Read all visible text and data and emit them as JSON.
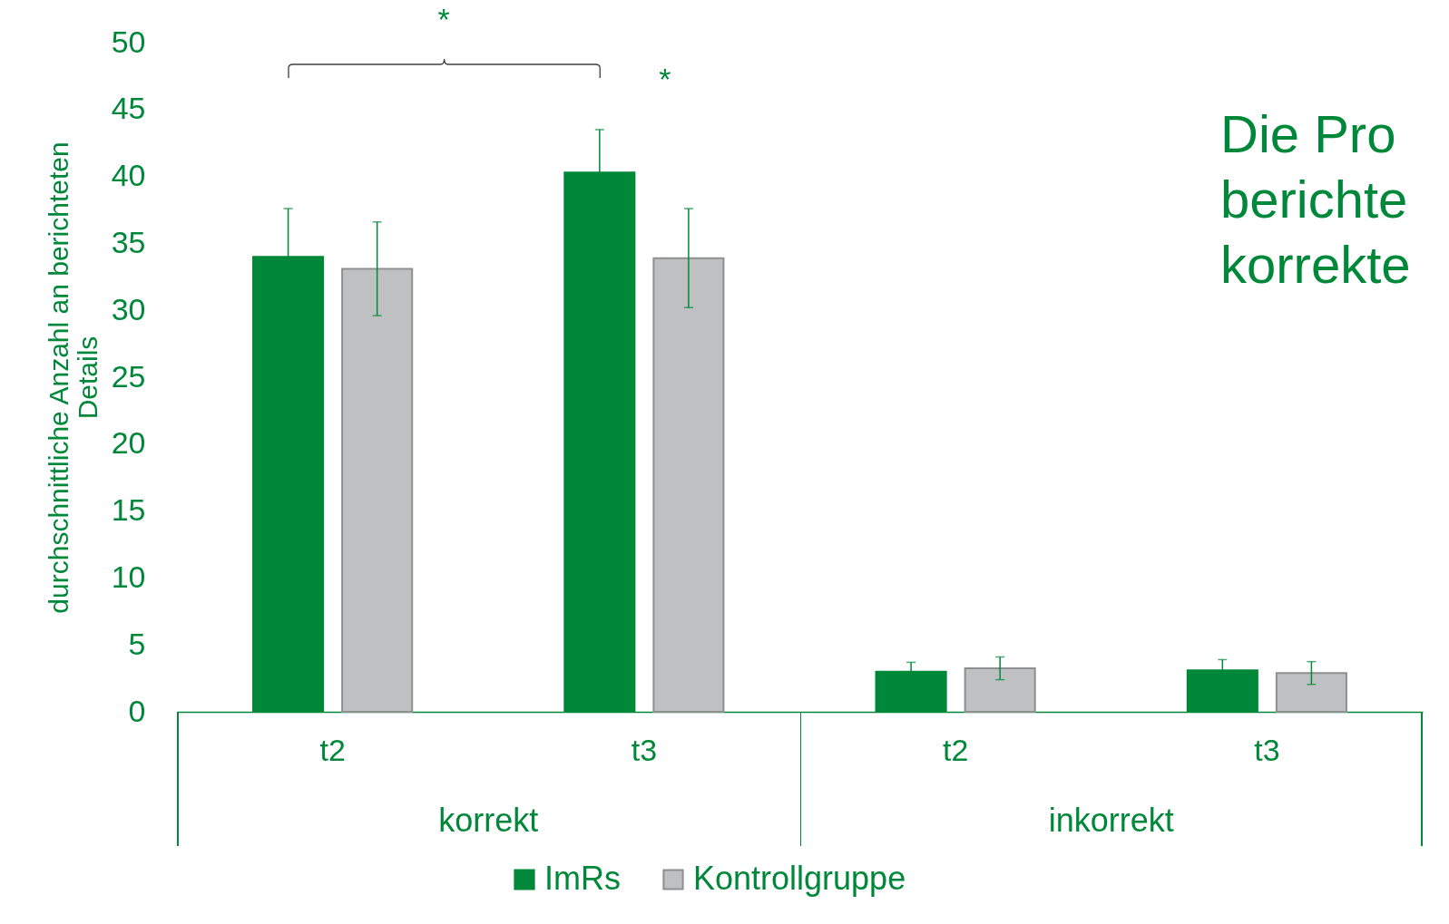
{
  "chart_data": {
    "type": "bar",
    "ylabel": "durchschnittliche Anzahl an berichteten Details",
    "categories": [
      "t2",
      "t3",
      "t2",
      "t3"
    ],
    "series": [
      {
        "name": "ImRs",
        "color": "#00883a",
        "values": [
          34,
          40.3,
          3.0,
          3.1
        ],
        "errors": [
          3.6,
          3.2,
          0.7,
          0.8
        ]
      },
      {
        "name": "Kontrollgruppe",
        "color": "#bfc0c2",
        "values": [
          33.1,
          33.9,
          3.25,
          2.9
        ],
        "errors": [
          3.5,
          3.7,
          0.85,
          0.85
        ]
      }
    ],
    "ylim": [
      0,
      50
    ],
    "yticks": [
      0,
      5,
      10,
      15,
      20,
      25,
      30,
      35,
      40,
      45,
      50
    ],
    "legend": "bottom",
    "annotations": [
      "*",
      "*",
      "korrekt",
      "inkorrekt",
      "Die Pro\nberichte\nkorrekte"
    ]
  }
}
